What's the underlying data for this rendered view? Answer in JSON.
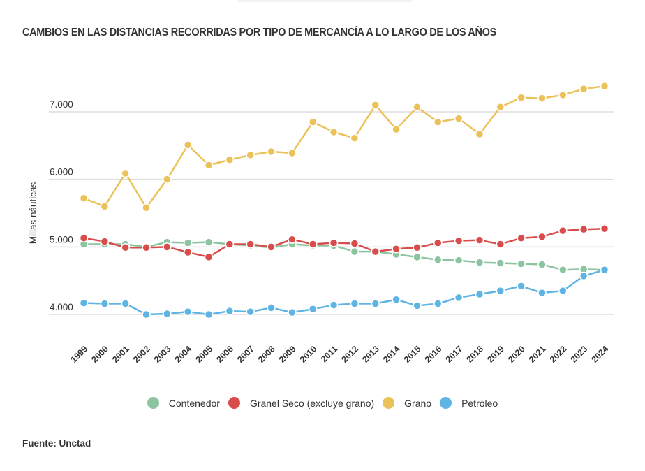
{
  "title": "CAMBIOS EN LAS DISTANCIAS RECORRIDAS POR TIPO DE MERCANCÍA A LO LARGO DE LOS AÑOS",
  "source": "Fuente: Unctad",
  "chart_data": {
    "type": "line",
    "title": "CAMBIOS EN LAS DISTANCIAS RECORRIDAS POR TIPO DE MERCANCÍA A LO LARGO DE LOS AÑOS",
    "xlabel": "",
    "ylabel": "Millas náuticas",
    "ylim": [
      3700,
      7600
    ],
    "yticks": [
      4000,
      5000,
      6000,
      7000
    ],
    "ytick_labels": [
      "4.000",
      "5.000",
      "6.000",
      "7.000"
    ],
    "grid": true,
    "legend_position": "bottom",
    "x": [
      "1999",
      "2000",
      "2001",
      "2002",
      "2003",
      "2004",
      "2005",
      "2006",
      "2007",
      "2008",
      "2009",
      "2010",
      "2011",
      "2012",
      "2013",
      "2014",
      "2015",
      "2016",
      "2017",
      "2018",
      "2019",
      "2020",
      "2021",
      "2022",
      "2023",
      "2024"
    ],
    "series": [
      {
        "name": "Contenedor",
        "color": "#8cc4a0",
        "values": [
          5040,
          5040,
          5040,
          5000,
          5070,
          5060,
          5070,
          5040,
          5020,
          4990,
          5040,
          5020,
          5020,
          4930,
          4930,
          4890,
          4850,
          4810,
          4800,
          4770,
          4760,
          4750,
          4740,
          4660,
          4670,
          4660
        ]
      },
      {
        "name": "Granel Seco (excluye grano)",
        "color": "#d94c4c",
        "values": [
          5130,
          5080,
          4990,
          4990,
          5000,
          4920,
          4850,
          5040,
          5040,
          5000,
          5110,
          5040,
          5060,
          5050,
          4930,
          4970,
          4990,
          5060,
          5090,
          5100,
          5040,
          5130,
          5150,
          5240,
          5260,
          5270
        ]
      },
      {
        "name": "Grano",
        "color": "#ebc25a",
        "values": [
          5720,
          5600,
          6090,
          5580,
          6000,
          6510,
          6210,
          6290,
          6360,
          6410,
          6390,
          6850,
          6700,
          6610,
          7100,
          6740,
          7070,
          6850,
          6900,
          6670,
          7070,
          7210,
          7200,
          7250,
          7340,
          7380
        ]
      },
      {
        "name": "Petróleo",
        "color": "#5eb4e3",
        "values": [
          4170,
          4160,
          4160,
          4000,
          4010,
          4040,
          4000,
          4050,
          4040,
          4100,
          4030,
          4080,
          4140,
          4160,
          4160,
          4220,
          4130,
          4160,
          4250,
          4300,
          4350,
          4420,
          4320,
          4350,
          4570,
          4660
        ]
      }
    ]
  }
}
